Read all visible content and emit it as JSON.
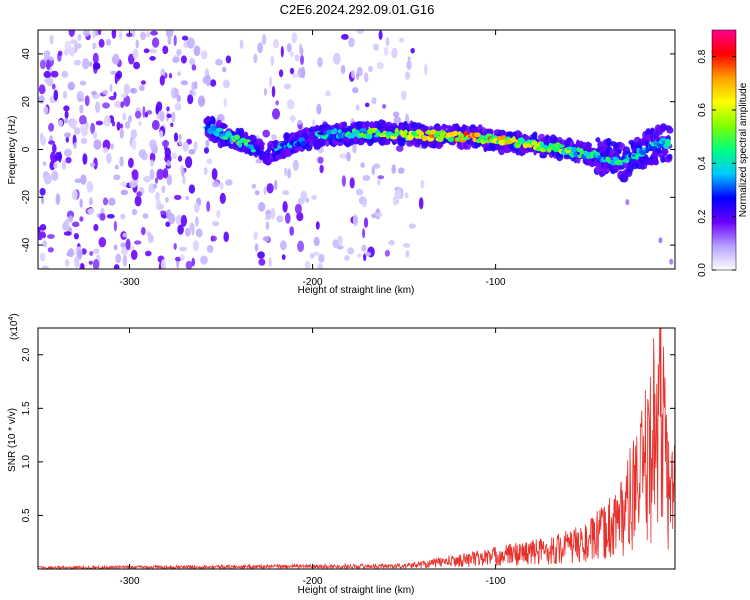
{
  "title": "C2E6.2024.292.09.01.G16",
  "chart_data": [
    {
      "type": "heatmap",
      "xlabel": "Height of straight line (km)",
      "ylabel": "Frequency (Hz)",
      "xlim": [
        -350,
        -2
      ],
      "ylim": [
        -50,
        50
      ],
      "x_ticks": [
        -300,
        -200,
        -100
      ],
      "x_tick_labels": [
        "-300",
        "-200",
        "-100"
      ],
      "y_ticks": [
        -40,
        -20,
        0,
        20,
        40
      ],
      "y_tick_labels": [
        "-40",
        "-20",
        "0",
        "20",
        "40"
      ],
      "colorbar": {
        "label": "Normalized spectral amplitude",
        "range": [
          0,
          0.9
        ],
        "ticks": [
          0.0,
          0.2,
          0.4,
          0.6,
          0.8
        ],
        "tick_labels": [
          "0.0",
          "0.2",
          "0.4",
          "0.6",
          "0.8"
        ],
        "colors": [
          "#ffffff",
          "#b7a0ff",
          "#6a00ff",
          "#0000ff",
          "#00c8ff",
          "#00ff80",
          "#80ff00",
          "#ffff00",
          "#ffa000",
          "#ff0000",
          "#ff0090"
        ]
      },
      "signal_track": {
        "x": [
          -258,
          -245,
          -235,
          -225,
          -210,
          -195,
          -170,
          -140,
          -110,
          -80,
          -50,
          -30,
          -15,
          -5
        ],
        "frequency": [
          10,
          5,
          2,
          -2,
          3,
          6,
          7,
          6,
          5,
          2,
          -2,
          -5,
          1,
          3
        ],
        "amplitude": [
          0.35,
          0.5,
          0.45,
          0.4,
          0.35,
          0.4,
          0.55,
          0.7,
          0.75,
          0.6,
          0.5,
          0.45,
          0.4,
          0.4
        ]
      }
    },
    {
      "type": "line",
      "xlabel": "Height of straight line (km)",
      "ylabel": "SNR (10 * v/v)",
      "y_multiplier_label": "(x10",
      "y_multiplier_exp": "4",
      "xlim": [
        -350,
        -2
      ],
      "ylim": [
        0,
        22500
      ],
      "x_ticks": [
        -300,
        -200,
        -100
      ],
      "x_tick_labels": [
        "-300",
        "-200",
        "-100"
      ],
      "y_ticks": [
        5000,
        10000,
        15000,
        20000
      ],
      "y_tick_labels": [
        "0.5",
        "1.0",
        "1.5",
        "2.0"
      ],
      "series": [
        {
          "color": "#e8302a",
          "x": [
            -350,
            -300,
            -250,
            -200,
            -150,
            -130,
            -110,
            -90,
            -70,
            -50,
            -40,
            -30,
            -20,
            -15,
            -10,
            -5,
            -2
          ],
          "y": [
            200,
            250,
            300,
            350,
            400,
            900,
            1400,
            2000,
            2500,
            3500,
            5000,
            7500,
            12000,
            16000,
            22500,
            9000,
            12000
          ]
        }
      ]
    }
  ]
}
